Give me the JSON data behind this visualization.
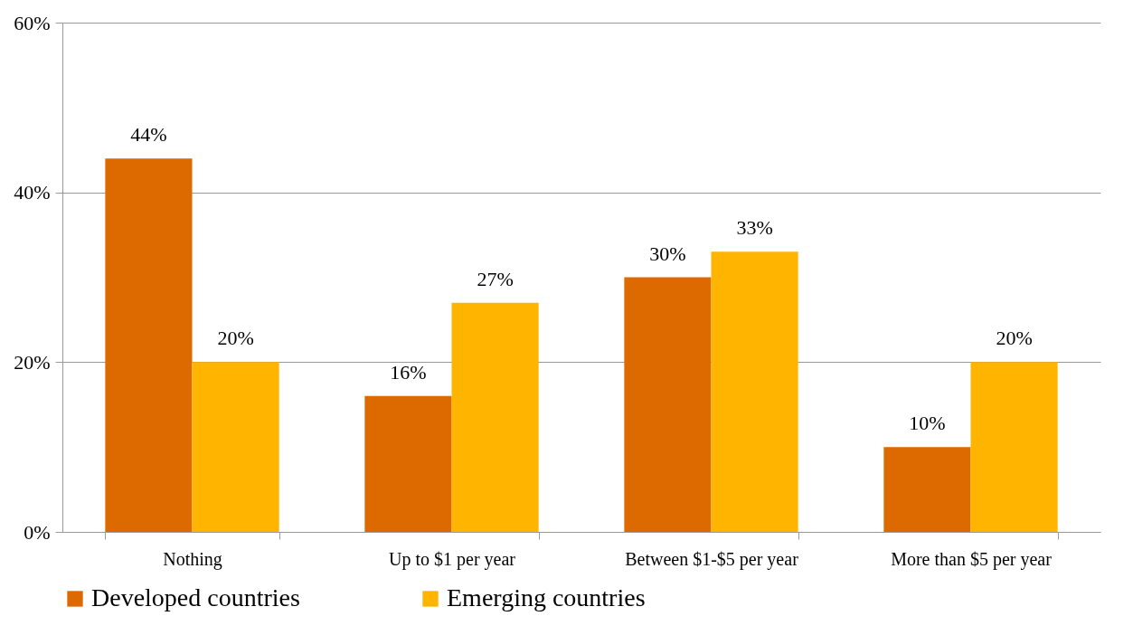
{
  "chart_data": {
    "type": "bar",
    "categories": [
      "Nothing",
      "Up to $1 per year",
      "Between $1-$5 per year",
      "More than $5 per year"
    ],
    "series": [
      {
        "name": "Developed countries",
        "color": "#dd6a00",
        "values": [
          44,
          16,
          30,
          10
        ],
        "value_labels": [
          "44%",
          "16%",
          "30%",
          "10%"
        ]
      },
      {
        "name": "Emerging countries",
        "color": "#ffb400",
        "values": [
          20,
          27,
          33,
          20
        ],
        "value_labels": [
          "20%",
          "27%",
          "33%",
          "20%"
        ]
      }
    ],
    "ylim": [
      0,
      60
    ],
    "yticks": [
      {
        "value": 0,
        "label": "0%"
      },
      {
        "value": 20,
        "label": "20%"
      },
      {
        "value": 40,
        "label": "40%"
      },
      {
        "value": 60,
        "label": "60%"
      }
    ],
    "grid": "y",
    "legend": "bottom"
  }
}
